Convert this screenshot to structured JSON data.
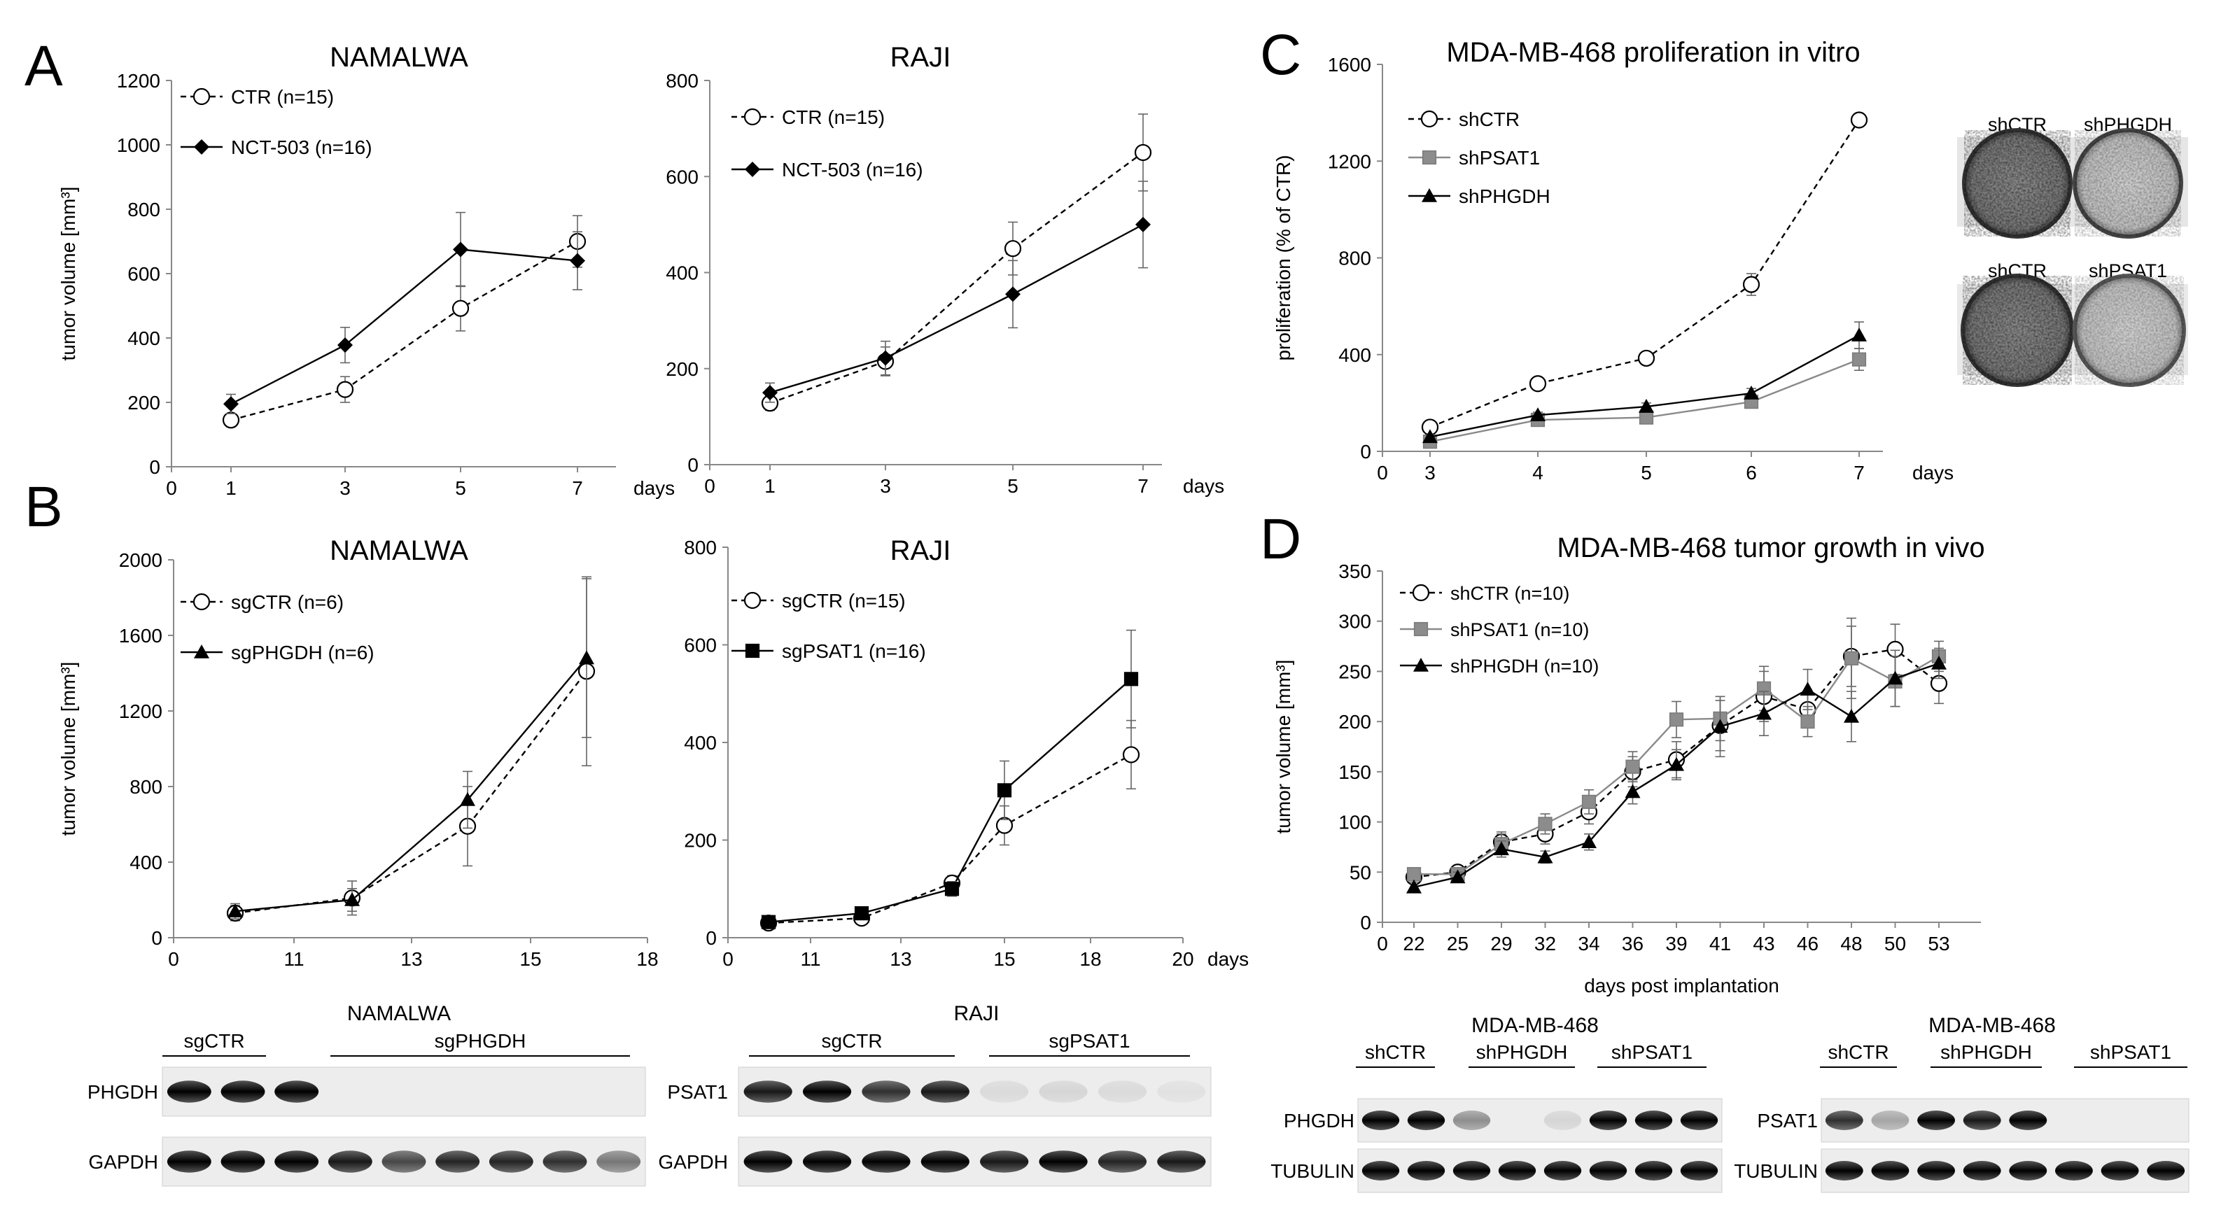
{
  "panels": {
    "A": {
      "letter": "A",
      "charts": [
        {
          "title": "NAMALWA",
          "type": "line",
          "ylabel": "tumor volume [mm³]",
          "xunit": "days",
          "xticks": [
            "0",
            "1",
            "3",
            "5",
            "7"
          ],
          "yticks": [
            "0",
            "200",
            "400",
            "600",
            "800",
            "1000",
            "1200"
          ],
          "ylim": [
            0,
            1200
          ],
          "series": [
            {
              "name": "CTR (n=15)",
              "marker": "circle",
              "dash": true,
              "x": [
                1,
                3,
                5,
                7
              ],
              "y": [
                145,
                240,
                492,
                700
              ],
              "err": [
                20,
                40,
                70,
                80
              ]
            },
            {
              "name": "NCT-503 (n=16)",
              "marker": "diamond",
              "dash": false,
              "x": [
                1,
                3,
                5,
                7
              ],
              "y": [
                195,
                378,
                675,
                640
              ],
              "err": [
                30,
                55,
                115,
                90
              ]
            }
          ]
        },
        {
          "title": "RAJI",
          "type": "line",
          "ylabel": "",
          "xunit": "days",
          "xticks": [
            "0",
            "1",
            "3",
            "5",
            "7"
          ],
          "yticks": [
            "0",
            "200",
            "400",
            "600",
            "800"
          ],
          "ylim": [
            0,
            800
          ],
          "series": [
            {
              "name": "CTR (n=15)",
              "marker": "circle",
              "dash": true,
              "x": [
                1,
                3,
                5,
                7
              ],
              "y": [
                128,
                215,
                450,
                650
              ],
              "err": [
                15,
                30,
                55,
                80
              ]
            },
            {
              "name": "NCT-503 (n=16)",
              "marker": "diamond",
              "dash": false,
              "x": [
                1,
                3,
                5,
                7
              ],
              "y": [
                150,
                222,
                355,
                500
              ],
              "err": [
                20,
                35,
                70,
                90
              ]
            }
          ]
        }
      ]
    },
    "B": {
      "letter": "B",
      "charts": [
        {
          "title": "NAMALWA",
          "type": "line",
          "ylabel": "tumor volume [mm³]",
          "xunit": "",
          "xticks": [
            "0",
            "11",
            "13",
            "15",
            "18"
          ],
          "yticks": [
            "0",
            "400",
            "800",
            "1200",
            "1600",
            "2000"
          ],
          "ylim": [
            0,
            2000
          ],
          "series": [
            {
              "name": "sgCTR (n=6)",
              "marker": "circle",
              "dash": true,
              "x": [
                10,
                12,
                14,
                16
              ],
              "y": [
                130,
                210,
                590,
                1410
              ],
              "err": [
                40,
                90,
                210,
                500
              ]
            },
            {
              "name": "sgPHGDH (n=6)",
              "marker": "triangle",
              "dash": false,
              "x": [
                10,
                12,
                14,
                16
              ],
              "y": [
                140,
                200,
                730,
                1480
              ],
              "err": [
                40,
                60,
                150,
                420
              ]
            }
          ]
        },
        {
          "title": "RAJI",
          "type": "line",
          "ylabel": "",
          "xunit": "days",
          "xticks": [
            "0",
            "11",
            "13",
            "15",
            "18",
            "20"
          ],
          "yticks": [
            "0",
            "200",
            "400",
            "600",
            "800"
          ],
          "ylim": [
            0,
            800
          ],
          "series": [
            {
              "name": "sgCTR (n=15)",
              "marker": "circle",
              "dash": true,
              "x": [
                10,
                12,
                14,
                16,
                18
              ],
              "y": [
                30,
                40,
                112,
                230,
                375
              ],
              "err": [
                8,
                10,
                15,
                40,
                70
              ]
            },
            {
              "name": "sgPSAT1 (n=16)",
              "marker": "square",
              "dash": false,
              "x": [
                10,
                12,
                14,
                16,
                18
              ],
              "y": [
                32,
                50,
                100,
                302,
                530
              ],
              "err": [
                8,
                10,
                15,
                60,
                100
              ]
            }
          ]
        }
      ]
    },
    "C": {
      "letter": "C",
      "title": "MDA-MB-468 proliferation in vitro",
      "ylabel": "proliferation (% of CTR)",
      "xunit": "days",
      "xticks": [
        "0",
        "3",
        "4",
        "5",
        "6",
        "7"
      ],
      "yticks": [
        "0",
        "400",
        "800",
        "1200",
        "1600"
      ],
      "ylim": [
        0,
        1600
      ],
      "series": [
        {
          "name": "shCTR",
          "marker": "circle",
          "dash": true,
          "x": [
            3,
            4,
            5,
            6,
            7
          ],
          "y": [
            100,
            280,
            385,
            690,
            1370
          ],
          "err": [
            10,
            15,
            20,
            45,
            20
          ]
        },
        {
          "name": "shPSAT1",
          "marker": "square",
          "dash": false,
          "gray": true,
          "x": [
            3,
            4,
            5,
            6,
            7
          ],
          "y": [
            40,
            130,
            140,
            205,
            380
          ],
          "err": [
            8,
            10,
            15,
            25,
            45
          ]
        },
        {
          "name": "shPHGDH",
          "marker": "triangle",
          "dash": false,
          "x": [
            3,
            4,
            5,
            6,
            7
          ],
          "y": [
            60,
            150,
            185,
            240,
            480
          ],
          "err": [
            8,
            12,
            15,
            20,
            55
          ]
        }
      ],
      "colony": [
        {
          "left": "shCTR",
          "right": "shPHGDH"
        },
        {
          "left": "shCTR",
          "right": "shPSAT1"
        }
      ]
    },
    "D": {
      "letter": "D",
      "title": "MDA-MB-468 tumor growth in vivo",
      "ylabel": "tumor volume [mm³]",
      "xlabel": "days post implantation",
      "xticks": [
        "0",
        "22",
        "25",
        "29",
        "32",
        "34",
        "36",
        "39",
        "41",
        "43",
        "46",
        "48",
        "50",
        "53"
      ],
      "yticks": [
        "0",
        "50",
        "100",
        "150",
        "200",
        "250",
        "300",
        "350"
      ],
      "ylim": [
        0,
        350
      ],
      "series": [
        {
          "name": "shCTR (n=10)",
          "marker": "circle",
          "dash": true,
          "y": [
            45,
            50,
            80,
            88,
            110,
            150,
            162,
            196,
            225,
            212,
            265,
            272,
            238
          ],
          "err": [
            6,
            6,
            10,
            10,
            12,
            15,
            18,
            25,
            25,
            15,
            30,
            25,
            20
          ]
        },
        {
          "name": "shPSAT1 (n=10)",
          "marker": "square",
          "dash": false,
          "gray": true,
          "y": [
            48,
            48,
            78,
            98,
            120,
            155,
            202,
            203,
            233,
            200,
            263,
            240,
            265
          ],
          "err": [
            6,
            6,
            10,
            10,
            12,
            15,
            18,
            22,
            22,
            15,
            40,
            25,
            15
          ]
        },
        {
          "name": "shPHGDH (n=10)",
          "marker": "triangle",
          "dash": false,
          "y": [
            35,
            45,
            73,
            65,
            80,
            130,
            157,
            195,
            208,
            232,
            205,
            243,
            258
          ],
          "err": [
            5,
            5,
            8,
            6,
            8,
            12,
            15,
            30,
            22,
            20,
            25,
            28,
            15
          ]
        }
      ]
    }
  },
  "chart_data": [
    {
      "type": "line",
      "title": "NAMALWA",
      "xlabel": "days",
      "ylabel": "tumor volume [mm³]",
      "x": [
        1,
        3,
        5,
        7
      ],
      "ylim": [
        0,
        1200
      ],
      "series": [
        {
          "name": "CTR (n=15)",
          "values": [
            145,
            240,
            492,
            700
          ]
        },
        {
          "name": "NCT-503 (n=16)",
          "values": [
            195,
            378,
            675,
            640
          ]
        }
      ]
    },
    {
      "type": "line",
      "title": "RAJI",
      "xlabel": "days",
      "x": [
        1,
        3,
        5,
        7
      ],
      "ylim": [
        0,
        800
      ],
      "series": [
        {
          "name": "CTR (n=15)",
          "values": [
            128,
            215,
            450,
            650
          ]
        },
        {
          "name": "NCT-503 (n=16)",
          "values": [
            150,
            222,
            355,
            500
          ]
        }
      ]
    },
    {
      "type": "line",
      "title": "NAMALWA",
      "ylabel": "tumor volume [mm³]",
      "x": [
        10,
        12,
        14,
        16
      ],
      "ylim": [
        0,
        2000
      ],
      "series": [
        {
          "name": "sgCTR (n=6)",
          "values": [
            130,
            210,
            590,
            1410
          ]
        },
        {
          "name": "sgPHGDH (n=6)",
          "values": [
            140,
            200,
            730,
            1480
          ]
        }
      ]
    },
    {
      "type": "line",
      "title": "RAJI",
      "xlabel": "days",
      "x": [
        10,
        12,
        14,
        16,
        18
      ],
      "ylim": [
        0,
        800
      ],
      "series": [
        {
          "name": "sgCTR (n=15)",
          "values": [
            30,
            40,
            112,
            230,
            375
          ]
        },
        {
          "name": "sgPSAT1 (n=16)",
          "values": [
            32,
            50,
            100,
            302,
            530
          ]
        }
      ]
    },
    {
      "type": "line",
      "title": "MDA-MB-468 proliferation in vitro",
      "xlabel": "days",
      "ylabel": "proliferation (% of CTR)",
      "x": [
        3,
        4,
        5,
        6,
        7
      ],
      "ylim": [
        0,
        1600
      ],
      "series": [
        {
          "name": "shCTR",
          "values": [
            100,
            280,
            385,
            690,
            1370
          ]
        },
        {
          "name": "shPSAT1",
          "values": [
            40,
            130,
            140,
            205,
            380
          ]
        },
        {
          "name": "shPHGDH",
          "values": [
            60,
            150,
            185,
            240,
            480
          ]
        }
      ]
    },
    {
      "type": "line",
      "title": "MDA-MB-468 tumor growth in vivo",
      "xlabel": "days post implantation",
      "ylabel": "tumor volume [mm³]",
      "x": [
        22,
        25,
        29,
        32,
        34,
        36,
        39,
        41,
        43,
        46,
        48,
        50,
        53
      ],
      "ylim": [
        0,
        350
      ],
      "series": [
        {
          "name": "shCTR (n=10)",
          "values": [
            45,
            50,
            80,
            88,
            110,
            150,
            162,
            196,
            225,
            212,
            265,
            272,
            238
          ]
        },
        {
          "name": "shPSAT1 (n=10)",
          "values": [
            48,
            48,
            78,
            98,
            120,
            155,
            202,
            203,
            233,
            200,
            263,
            240,
            265
          ]
        },
        {
          "name": "shPHGDH (n=10)",
          "values": [
            35,
            45,
            73,
            65,
            80,
            130,
            157,
            195,
            208,
            232,
            205,
            243,
            258
          ]
        }
      ]
    }
  ],
  "blots": [
    {
      "title": "NAMALWA",
      "groups": [
        "sgCTR",
        "sgPHGDH"
      ],
      "rows": [
        "PHGDH",
        "GAPDH"
      ],
      "lanes": [
        [
          1.0,
          1.0
        ],
        [
          1.0,
          1.0
        ],
        [
          1.0,
          1.0
        ],
        [
          0,
          0.9
        ],
        [
          0,
          0.7
        ],
        [
          0,
          0.85
        ],
        [
          0,
          0.85
        ],
        [
          0,
          0.8
        ],
        [
          0,
          0.5
        ]
      ]
    },
    {
      "title": "RAJI",
      "groups": [
        "sgCTR",
        "sgPSAT1"
      ],
      "rows": [
        "PSAT1",
        "GAPDH"
      ],
      "lanes": [
        [
          0.9,
          1.0
        ],
        [
          1.0,
          1.0
        ],
        [
          0.8,
          1.0
        ],
        [
          0.9,
          1.0
        ],
        [
          0.08,
          0.9
        ],
        [
          0.1,
          1.0
        ],
        [
          0.08,
          0.85
        ],
        [
          0.05,
          0.9
        ]
      ]
    },
    {
      "title": "MDA-MB-468",
      "groups": [
        "shCTR",
        "shPHGDH",
        "shPSAT1"
      ],
      "rows": [
        "PHGDH",
        "TUBULIN"
      ],
      "lanes": [
        [
          1.0,
          1.0
        ],
        [
          1.0,
          1.0
        ],
        [
          0.4,
          1.0
        ],
        [
          0,
          1.0
        ],
        [
          0.1,
          1.0
        ],
        [
          1.0,
          1.0
        ],
        [
          1.0,
          1.0
        ],
        [
          1.0,
          1.0
        ]
      ]
    },
    {
      "title": "MDA-MB-468",
      "groups": [
        "shCTR",
        "shPHGDH",
        "shPSAT1"
      ],
      "rows": [
        "PSAT1",
        "TUBULIN"
      ],
      "lanes": [
        [
          0.8,
          1.0
        ],
        [
          0.3,
          1.0
        ],
        [
          1.0,
          1.0
        ],
        [
          0.9,
          1.0
        ],
        [
          1.0,
          1.0
        ],
        [
          0,
          1.0
        ],
        [
          0,
          1.0
        ],
        [
          0,
          1.0
        ]
      ]
    }
  ]
}
